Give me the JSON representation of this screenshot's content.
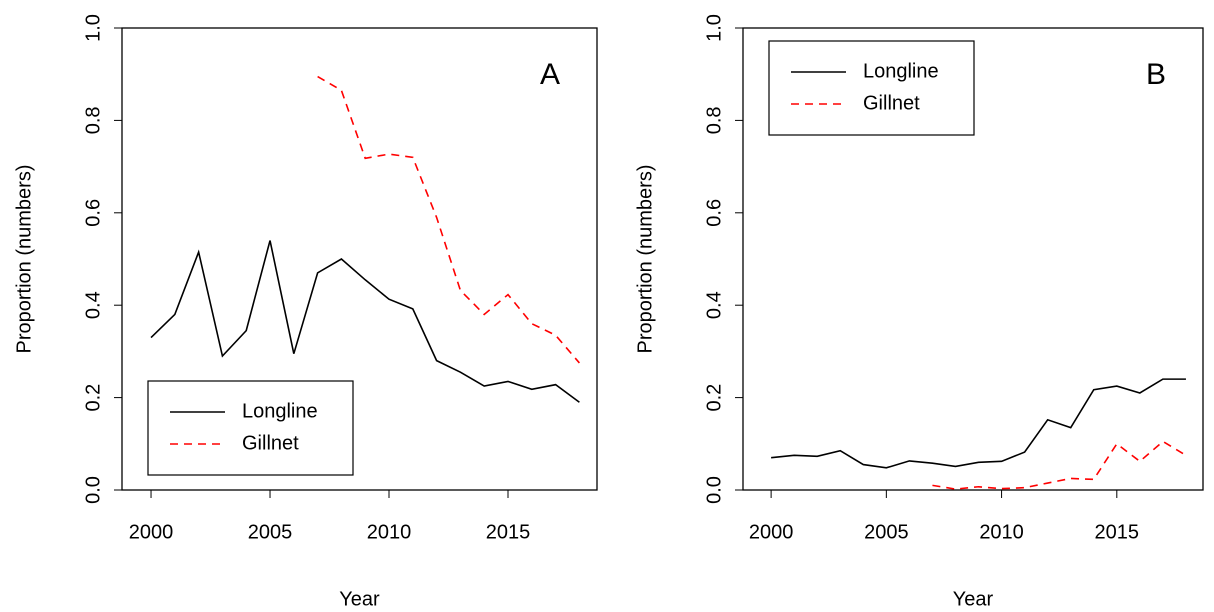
{
  "chart_data": [
    {
      "type": "line",
      "annotation": "A",
      "xlabel": "Year",
      "ylabel": "Proportion (numbers)",
      "x": [
        2000,
        2001,
        2002,
        2003,
        2004,
        2005,
        2006,
        2007,
        2008,
        2009,
        2010,
        2011,
        2012,
        2013,
        2014,
        2015,
        2016,
        2017,
        2018
      ],
      "series": [
        {
          "name": "Longline",
          "color": "#000000",
          "linestyle": "solid",
          "values": [
            0.33,
            0.38,
            0.515,
            0.29,
            0.345,
            0.54,
            0.295,
            0.47,
            0.5,
            0.455,
            0.413,
            0.392,
            0.28,
            0.255,
            0.225,
            0.235,
            0.218,
            0.228,
            0.19
          ]
        },
        {
          "name": "Gillnet",
          "color": "#ff0000",
          "linestyle": "dashed",
          "values": [
            null,
            null,
            null,
            null,
            null,
            null,
            null,
            0.895,
            0.865,
            0.718,
            0.727,
            0.72,
            0.59,
            0.432,
            0.38,
            0.423,
            0.36,
            0.335,
            0.275
          ]
        }
      ],
      "xlim": [
        1998.78,
        2018.74
      ],
      "xticks": [
        2000,
        2005,
        2010,
        2015
      ],
      "ylim": [
        0,
        1
      ],
      "yticks": [
        {
          "value": 0,
          "label": "0.0"
        },
        0.2,
        0.4,
        0.6,
        0.8,
        {
          "value": 1,
          "label": "1.0"
        }
      ],
      "legend": "bottom-left"
    },
    {
      "type": "line",
      "annotation": "B",
      "xlabel": "Year",
      "ylabel": "Proportion (numbers)",
      "x": [
        2000,
        2001,
        2002,
        2003,
        2004,
        2005,
        2006,
        2007,
        2008,
        2009,
        2010,
        2011,
        2012,
        2013,
        2014,
        2015,
        2016,
        2017,
        2018
      ],
      "series": [
        {
          "name": "Longline",
          "color": "#000000",
          "linestyle": "solid",
          "values": [
            0.07,
            0.075,
            0.073,
            0.085,
            0.055,
            0.048,
            0.063,
            0.058,
            0.051,
            0.06,
            0.062,
            0.082,
            0.152,
            0.135,
            0.217,
            0.225,
            0.21,
            0.24,
            0.24
          ]
        },
        {
          "name": "Gillnet",
          "color": "#ff0000",
          "linestyle": "dashed",
          "values": [
            null,
            null,
            null,
            null,
            null,
            null,
            null,
            0.01,
            0.002,
            0.007,
            0.003,
            0.005,
            0.015,
            0.025,
            0.023,
            0.1,
            0.062,
            0.105,
            0.075
          ]
        }
      ],
      "xlim": [
        1998.78,
        2018.74
      ],
      "xticks": [
        2000,
        2005,
        2010,
        2015
      ],
      "ylim": [
        0,
        1
      ],
      "yticks": [
        {
          "value": 0,
          "label": "0.0"
        },
        0.2,
        0.4,
        0.6,
        0.8,
        {
          "value": 1,
          "label": "1.0"
        }
      ],
      "legend": "top-left"
    }
  ]
}
